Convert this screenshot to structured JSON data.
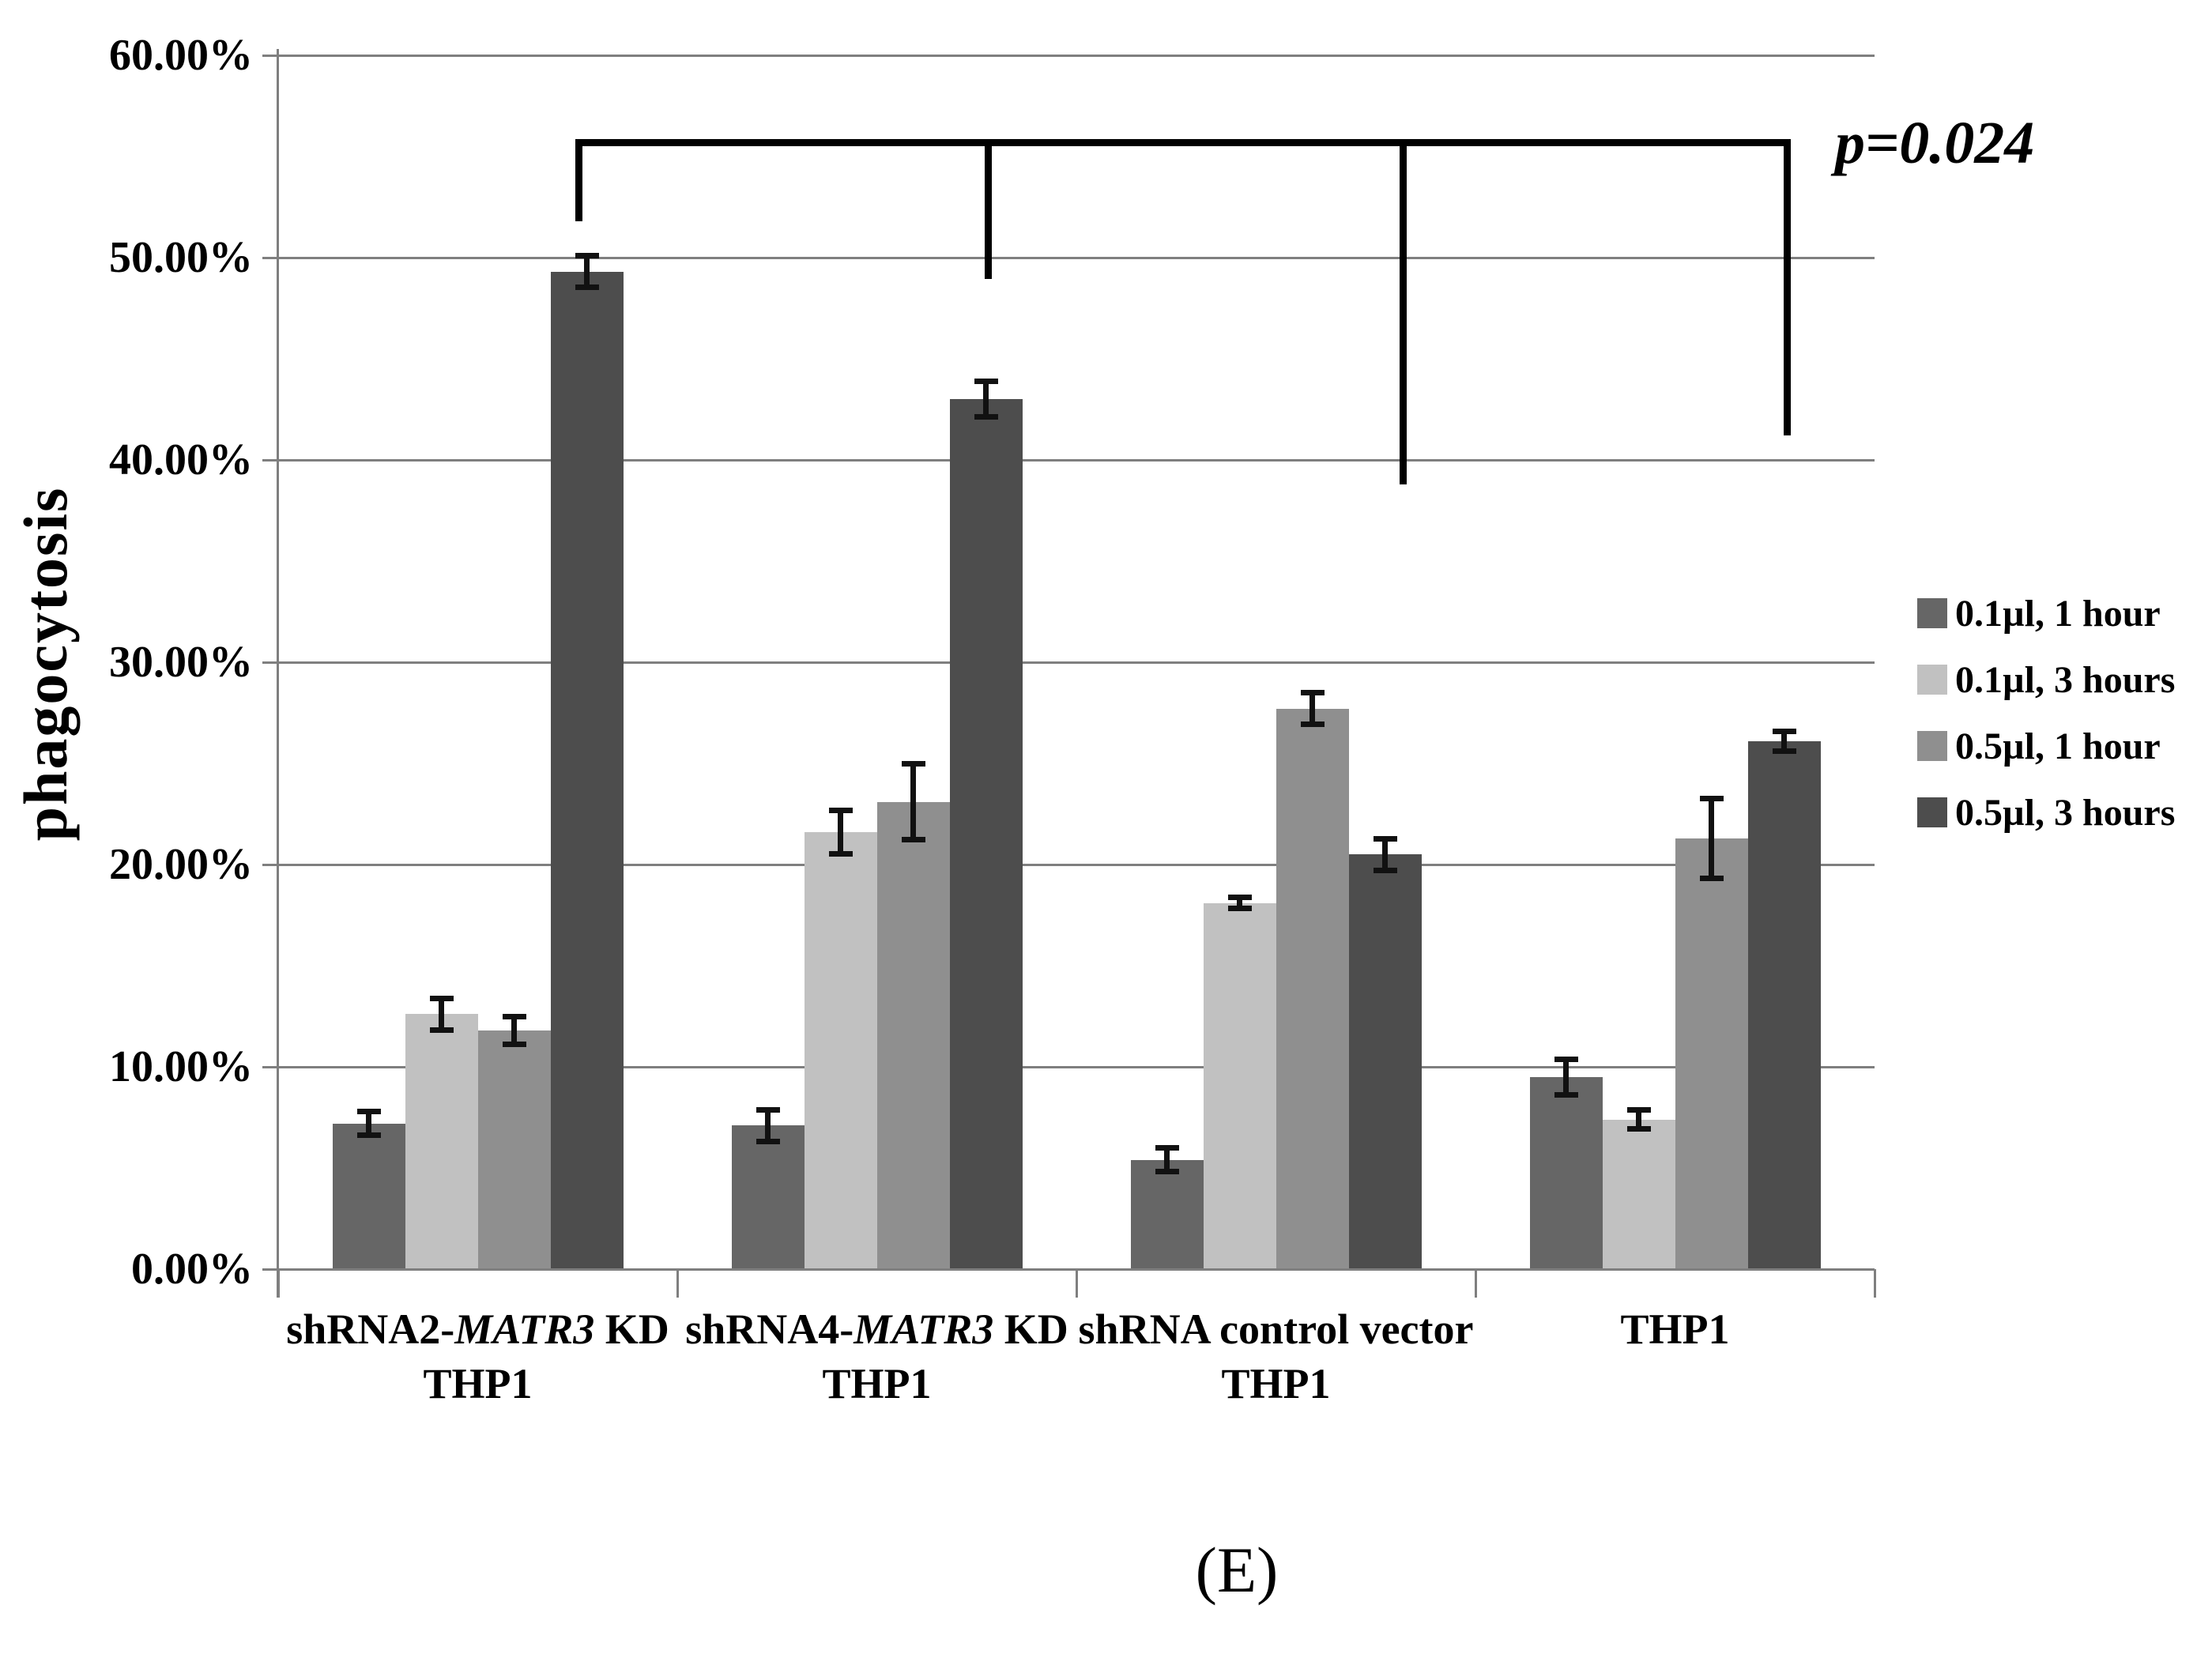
{
  "figure_label": "(E)",
  "chart_data": {
    "type": "bar",
    "title": "",
    "ylabel": "phagocytosis",
    "xlabel": "",
    "ylim": [
      0,
      60
    ],
    "ytick_step": 10,
    "ytick_labels": [
      "0.00%",
      "10.00%",
      "20.00%",
      "30.00%",
      "40.00%",
      "50.00%",
      "60.00%"
    ],
    "grid": true,
    "legend_position": "right",
    "categories": [
      {
        "line1_parts": [
          {
            "text": "shRNA2-",
            "italic": false
          },
          {
            "text": "MATR3",
            "italic": true
          },
          {
            "text": " KD",
            "italic": false
          }
        ],
        "line2": "THP1"
      },
      {
        "line1_parts": [
          {
            "text": "shRNA4-",
            "italic": false
          },
          {
            "text": "MATR3",
            "italic": true
          },
          {
            "text": " KD",
            "italic": false
          }
        ],
        "line2": "THP1"
      },
      {
        "line1_parts": [
          {
            "text": "shRNA control vector",
            "italic": false
          }
        ],
        "line2": "THP1"
      },
      {
        "line1_parts": [
          {
            "text": "THP1",
            "italic": false
          }
        ],
        "line2": ""
      }
    ],
    "series": [
      {
        "name": "0.1µl, 1 hour",
        "color": "#666666",
        "values": [
          7.2,
          7.1,
          5.4,
          9.5
        ],
        "errors": [
          0.6,
          0.8,
          0.6,
          0.9
        ]
      },
      {
        "name": "0.1µl, 3 hours",
        "color": "#c1c1c1",
        "values": [
          12.6,
          21.6,
          18.1,
          7.4
        ],
        "errors": [
          0.8,
          1.1,
          0.3,
          0.5
        ]
      },
      {
        "name": "0.5µl, 1 hour",
        "color": "#8f8f8f",
        "values": [
          11.8,
          23.1,
          27.7,
          21.3
        ],
        "errors": [
          0.7,
          1.9,
          0.8,
          2.0
        ]
      },
      {
        "name": "0.5µl, 3 hours",
        "color": "#4d4d4d",
        "values": [
          49.3,
          43.0,
          20.5,
          26.1
        ],
        "errors": [
          0.8,
          0.9,
          0.8,
          0.5
        ]
      }
    ],
    "significance": {
      "label": "p=0.024",
      "bracket_top_y": 176,
      "legs": [
        {
          "x": 732,
          "y_bottom": 280
        },
        {
          "x": 1250,
          "y_bottom": 353
        },
        {
          "x": 1775,
          "y_bottom": 613
        },
        {
          "x": 2261,
          "y_bottom": 551
        }
      ]
    }
  }
}
